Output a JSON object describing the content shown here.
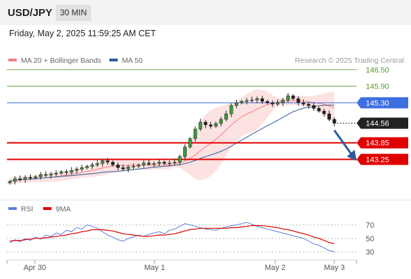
{
  "header": {
    "pair": "USD/JPY",
    "timeframe": "30 MIN"
  },
  "timestamp": "Friday, May 2, 2025 11:59:25 AM CET",
  "chart_data": [
    {
      "type": "line",
      "subtype": "candlestick",
      "source_text": "Research © 2025 Trading Central",
      "legend": [
        {
          "name": "MA 20 + Bollinger Bands",
          "color": "#f08080"
        },
        {
          "name": "MA 50",
          "color": "#2e5c9a"
        }
      ],
      "legend_position": "top-left",
      "x_tick_labels": [
        "Apr 30",
        "May 1",
        "May 2",
        "May 3"
      ],
      "y_range": [
        142.0,
        147.0
      ],
      "current_price": {
        "label": "144.56",
        "value": 144.56,
        "color": "#222222"
      },
      "levels": [
        {
          "label": "146.50",
          "value": 146.5,
          "kind": "resistance",
          "color": "#6aa84f"
        },
        {
          "label": "145.90",
          "value": 145.9,
          "kind": "resistance",
          "color": "#6aa84f"
        },
        {
          "label": "145.30",
          "value": 145.3,
          "kind": "pivot",
          "color": "#3d6fe0"
        },
        {
          "label": "143.85",
          "value": 143.85,
          "kind": "support",
          "color": "#e00000"
        },
        {
          "label": "143.25",
          "value": 143.25,
          "kind": "support",
          "color": "#e00000"
        }
      ],
      "arrow": {
        "from": 144.3,
        "to": 143.3,
        "color": "#2e5c9a"
      },
      "close_path": [
        142.45,
        142.55,
        142.52,
        142.6,
        142.58,
        142.62,
        142.7,
        142.68,
        142.72,
        142.75,
        142.8,
        142.78,
        142.85,
        142.9,
        142.95,
        143.0,
        143.05,
        143.1,
        143.2,
        143.15,
        143.05,
        142.95,
        142.9,
        142.98,
        143.0,
        143.05,
        143.12,
        143.08,
        143.1,
        143.15,
        143.1,
        143.12,
        143.15,
        143.35,
        143.7,
        144.0,
        144.35,
        144.6,
        144.5,
        144.45,
        144.55,
        144.7,
        144.9,
        145.2,
        145.3,
        145.35,
        145.38,
        145.4,
        145.45,
        145.35,
        145.3,
        145.25,
        145.3,
        145.4,
        145.55,
        145.45,
        145.3,
        145.25,
        145.2,
        145.1,
        145.0,
        144.9,
        144.7,
        144.56
      ]
    },
    {
      "type": "line",
      "legend": [
        {
          "name": "RSI",
          "color": "#5b7fdb"
        },
        {
          "name": "9MA",
          "color": "#e00000"
        }
      ],
      "y_tick_labels": [
        "70",
        "50",
        "30"
      ],
      "ylim": [
        25,
        85
      ],
      "series": [
        {
          "name": "RSI",
          "values": [
            44,
            48,
            45,
            50,
            47,
            52,
            49,
            55,
            53,
            58,
            56,
            62,
            60,
            66,
            64,
            70,
            68,
            65,
            60,
            55,
            52,
            48,
            46,
            50,
            52,
            55,
            53,
            56,
            58,
            60,
            57,
            62,
            64,
            68,
            72,
            70,
            68,
            66,
            64,
            63,
            62,
            65,
            67,
            69,
            70,
            72,
            74,
            71,
            68,
            66,
            64,
            62,
            60,
            58,
            56,
            54,
            52,
            50,
            46,
            42,
            40,
            36,
            32,
            30
          ]
        },
        {
          "name": "9MA",
          "values": [
            46,
            47,
            47,
            48,
            49,
            50,
            50,
            51,
            52,
            53,
            54,
            55,
            57,
            58,
            60,
            61,
            63,
            63,
            63,
            62,
            61,
            59,
            57,
            56,
            55,
            54,
            53,
            53,
            54,
            55,
            55,
            56,
            57,
            59,
            61,
            63,
            64,
            65,
            65,
            65,
            65,
            65,
            65,
            66,
            66,
            67,
            68,
            69,
            69,
            69,
            68,
            67,
            66,
            64,
            63,
            61,
            59,
            57,
            55,
            52,
            50,
            47,
            44,
            42
          ]
        }
      ]
    }
  ]
}
